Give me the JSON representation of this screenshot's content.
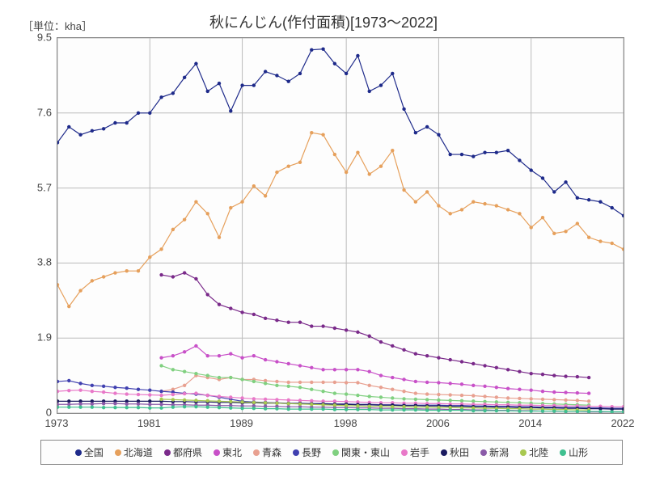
{
  "title": "秋にんじん(作付面積)[1973～2022]",
  "unit": "［単位：kha］",
  "type": "line",
  "xlim": [
    1973,
    2022
  ],
  "ylim": [
    0,
    9.5
  ],
  "xticks": [
    1973,
    1981,
    1989,
    1998,
    2006,
    2014,
    2022
  ],
  "yticks": [
    0,
    1.9,
    3.8,
    5.7,
    7.6,
    9.5
  ],
  "bg": "#fdfdfd",
  "grid_color": "#bbbbbb",
  "title_fontsize": 18,
  "axis_fontsize": 13,
  "legend_fontsize": 12,
  "marker_radius": 2.2,
  "line_width": 1.2,
  "series": [
    {
      "name": "全国",
      "color": "#1e2a8a",
      "start": 1973,
      "values": [
        6.85,
        7.25,
        7.05,
        7.15,
        7.2,
        7.35,
        7.35,
        7.6,
        7.6,
        8.0,
        8.1,
        8.5,
        8.85,
        8.15,
        8.35,
        7.65,
        8.3,
        8.3,
        8.65,
        8.55,
        8.4,
        8.6,
        9.2,
        9.22,
        8.85,
        8.6,
        9.05,
        8.15,
        8.3,
        8.6,
        7.7,
        7.1,
        7.25,
        7.05,
        6.55,
        6.55,
        6.5,
        6.6,
        6.6,
        6.65,
        6.4,
        6.15,
        5.95,
        5.6,
        5.85,
        5.45,
        5.4,
        5.35,
        5.2,
        5.0
      ]
    },
    {
      "name": "北海道",
      "color": "#e6a05c",
      "start": 1973,
      "values": [
        3.25,
        2.7,
        3.1,
        3.35,
        3.45,
        3.55,
        3.6,
        3.6,
        3.95,
        4.15,
        4.65,
        4.9,
        5.35,
        5.05,
        4.45,
        5.2,
        5.35,
        5.75,
        5.5,
        6.1,
        6.25,
        6.35,
        7.1,
        7.05,
        6.55,
        6.1,
        6.6,
        6.05,
        6.25,
        6.65,
        5.65,
        5.35,
        5.6,
        5.25,
        5.05,
        5.15,
        5.35,
        5.3,
        5.25,
        5.15,
        5.05,
        4.7,
        4.95,
        4.55,
        4.6,
        4.8,
        4.45,
        4.35,
        4.3,
        4.15
      ]
    },
    {
      "name": "都府県",
      "color": "#7a2a8a",
      "start": 1982,
      "values": [
        3.5,
        3.45,
        3.55,
        3.4,
        3.0,
        2.75,
        2.65,
        2.55,
        2.5,
        2.4,
        2.35,
        2.3,
        2.3,
        2.2,
        2.2,
        2.15,
        2.1,
        2.05,
        1.95,
        1.8,
        1.7,
        1.6,
        1.5,
        1.45,
        1.4,
        1.35,
        1.3,
        1.25,
        1.2,
        1.15,
        1.1,
        1.05,
        1.0,
        0.98,
        0.95,
        0.93,
        0.92,
        0.9
      ]
    },
    {
      "name": "東北",
      "color": "#c850c8",
      "start": 1982,
      "values": [
        1.4,
        1.45,
        1.55,
        1.7,
        1.45,
        1.45,
        1.5,
        1.4,
        1.45,
        1.35,
        1.3,
        1.25,
        1.2,
        1.15,
        1.1,
        1.1,
        1.1,
        1.1,
        1.05,
        0.95,
        0.9,
        0.85,
        0.8,
        0.78,
        0.77,
        0.75,
        0.73,
        0.7,
        0.68,
        0.65,
        0.62,
        0.6,
        0.58,
        0.55,
        0.53,
        0.52,
        0.51,
        0.5
      ]
    },
    {
      "name": "青森",
      "color": "#e8a090",
      "start": 1982,
      "values": [
        0.55,
        0.6,
        0.7,
        0.95,
        0.9,
        0.85,
        0.9,
        0.85,
        0.85,
        0.82,
        0.8,
        0.78,
        0.78,
        0.78,
        0.78,
        0.78,
        0.77,
        0.77,
        0.7,
        0.65,
        0.6,
        0.55,
        0.5,
        0.48,
        0.47,
        0.46,
        0.45,
        0.44,
        0.42,
        0.4,
        0.38,
        0.37,
        0.36,
        0.35,
        0.34,
        0.33,
        0.32,
        0.3
      ]
    },
    {
      "name": "長野",
      "color": "#4040b0",
      "start": 1973,
      "values": [
        0.8,
        0.82,
        0.75,
        0.7,
        0.68,
        0.65,
        0.63,
        0.6,
        0.58,
        0.55,
        0.53,
        0.5,
        0.48,
        0.45,
        0.4,
        0.35,
        0.3,
        0.28,
        0.27,
        0.26,
        0.25,
        0.25,
        0.24,
        0.24,
        0.23,
        0.23,
        0.22,
        0.22,
        0.21,
        0.21,
        0.2,
        0.2,
        0.2,
        0.2,
        0.19,
        0.19,
        0.18,
        0.18,
        0.17,
        0.17,
        0.16,
        0.16,
        0.15,
        0.15,
        0.14,
        0.14,
        0.13,
        0.13,
        0.12,
        0.12
      ]
    },
    {
      "name": "関東・東山",
      "color": "#80d080",
      "start": 1982,
      "values": [
        1.2,
        1.1,
        1.05,
        1.0,
        0.95,
        0.9,
        0.9,
        0.85,
        0.8,
        0.75,
        0.7,
        0.68,
        0.65,
        0.6,
        0.55,
        0.5,
        0.48,
        0.45,
        0.42,
        0.4,
        0.38,
        0.36,
        0.35,
        0.34,
        0.33,
        0.32,
        0.31,
        0.3,
        0.29,
        0.28,
        0.27,
        0.26,
        0.25,
        0.24,
        0.23,
        0.22,
        0.21,
        0.2
      ]
    },
    {
      "name": "岩手",
      "color": "#e878c8",
      "start": 1973,
      "values": [
        0.55,
        0.57,
        0.58,
        0.55,
        0.53,
        0.5,
        0.48,
        0.47,
        0.46,
        0.45,
        0.47,
        0.49,
        0.5,
        0.45,
        0.42,
        0.4,
        0.38,
        0.36,
        0.35,
        0.34,
        0.33,
        0.32,
        0.31,
        0.3,
        0.3,
        0.29,
        0.28,
        0.27,
        0.26,
        0.26,
        0.25,
        0.25,
        0.24,
        0.24,
        0.23,
        0.23,
        0.22,
        0.22,
        0.21,
        0.21,
        0.2,
        0.2,
        0.19,
        0.19,
        0.18,
        0.18,
        0.17,
        0.17,
        0.16,
        0.16
      ]
    },
    {
      "name": "秋田",
      "color": "#1a1a60",
      "start": 1973,
      "values": [
        0.3,
        0.3,
        0.3,
        0.3,
        0.3,
        0.3,
        0.3,
        0.3,
        0.3,
        0.3,
        0.29,
        0.29,
        0.28,
        0.28,
        0.27,
        0.27,
        0.26,
        0.26,
        0.25,
        0.25,
        0.24,
        0.24,
        0.23,
        0.23,
        0.22,
        0.22,
        0.21,
        0.21,
        0.2,
        0.2,
        0.19,
        0.19,
        0.18,
        0.18,
        0.17,
        0.17,
        0.16,
        0.16,
        0.15,
        0.15,
        0.14,
        0.14,
        0.13,
        0.13,
        0.12,
        0.12,
        0.11,
        0.11,
        0.1,
        0.1
      ]
    },
    {
      "name": "新潟",
      "color": "#8a5aa8",
      "start": 1973,
      "values": [
        0.22,
        0.22,
        0.23,
        0.23,
        0.24,
        0.24,
        0.23,
        0.23,
        0.22,
        0.22,
        0.21,
        0.21,
        0.2,
        0.2,
        0.19,
        0.19,
        0.18,
        0.18,
        0.17,
        0.17,
        0.16,
        0.16,
        0.15,
        0.15,
        0.14,
        0.14,
        0.13,
        0.13,
        0.12,
        0.12,
        0.11,
        0.11,
        0.1,
        0.1,
        0.09,
        0.09,
        0.08,
        0.08,
        0.07,
        0.07,
        0.06,
        0.06,
        0.05,
        0.05,
        0.04,
        0.04,
        0.03,
        0.03,
        0.03,
        0.03
      ]
    },
    {
      "name": "北陸",
      "color": "#a8c850",
      "start": 1982,
      "values": [
        0.35,
        0.34,
        0.33,
        0.32,
        0.31,
        0.3,
        0.29,
        0.28,
        0.27,
        0.26,
        0.25,
        0.24,
        0.23,
        0.22,
        0.21,
        0.2,
        0.19,
        0.18,
        0.17,
        0.17,
        0.16,
        0.16,
        0.15,
        0.15,
        0.14,
        0.14,
        0.13,
        0.13,
        0.12,
        0.12,
        0.11,
        0.11,
        0.1,
        0.1,
        0.09,
        0.09,
        0.08,
        0.08
      ]
    },
    {
      "name": "山形",
      "color": "#40c090",
      "start": 1973,
      "values": [
        0.15,
        0.15,
        0.15,
        0.15,
        0.14,
        0.14,
        0.14,
        0.14,
        0.13,
        0.13,
        0.15,
        0.16,
        0.16,
        0.15,
        0.14,
        0.13,
        0.12,
        0.12,
        0.11,
        0.11,
        0.1,
        0.1,
        0.1,
        0.1,
        0.09,
        0.09,
        0.09,
        0.09,
        0.08,
        0.08,
        0.08,
        0.08,
        0.07,
        0.07,
        0.07,
        0.07,
        0.06,
        0.06,
        0.06,
        0.06,
        0.05,
        0.05,
        0.05,
        0.05,
        0.04,
        0.04,
        0.04,
        0.04,
        0.03,
        0.03
      ]
    }
  ]
}
